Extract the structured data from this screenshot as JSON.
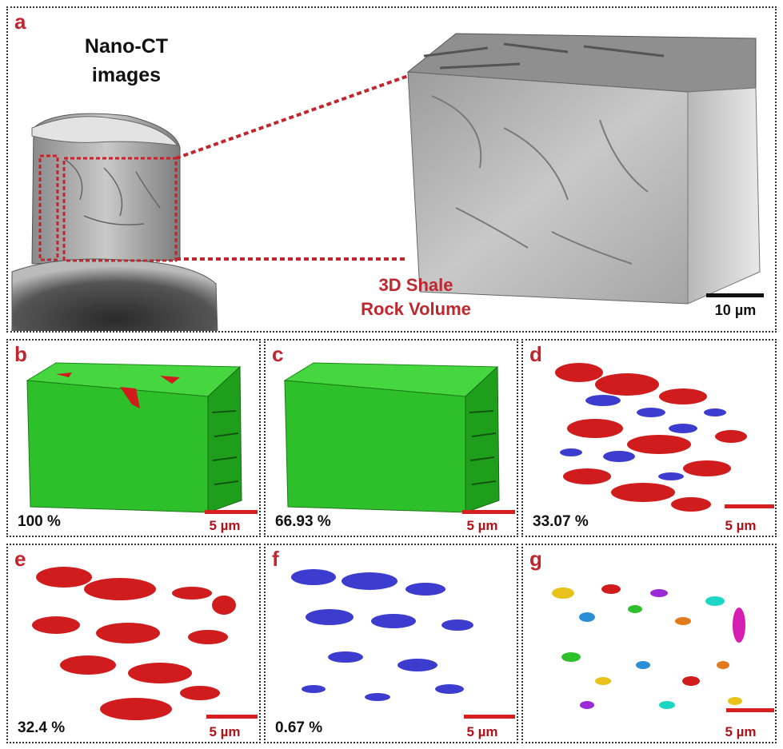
{
  "panel_a": {
    "letter": "a",
    "title_line1": "Nano-CT",
    "title_line2": "images",
    "volume_line1": "3D Shale",
    "volume_line2": "Rock Volume",
    "scale": "10 µm"
  },
  "panels": [
    {
      "letter": "b",
      "pct": "100 %",
      "scale": "5 µm"
    },
    {
      "letter": "c",
      "pct": "66.93 %",
      "scale": "5 µm"
    },
    {
      "letter": "d",
      "pct": "33.07 %",
      "scale": "5 µm"
    },
    {
      "letter": "e",
      "pct": "32.4 %",
      "scale": "5 µm"
    },
    {
      "letter": "f",
      "pct": "0.67 %",
      "scale": "5 µm"
    },
    {
      "letter": "g",
      "pct": "",
      "scale": "5 µm"
    }
  ],
  "colors": {
    "accent_red": "#c0262d",
    "matrix_green": "#2ec02a",
    "pore_red": "#d01c1c",
    "pore_blue": "#3c3ccf"
  }
}
